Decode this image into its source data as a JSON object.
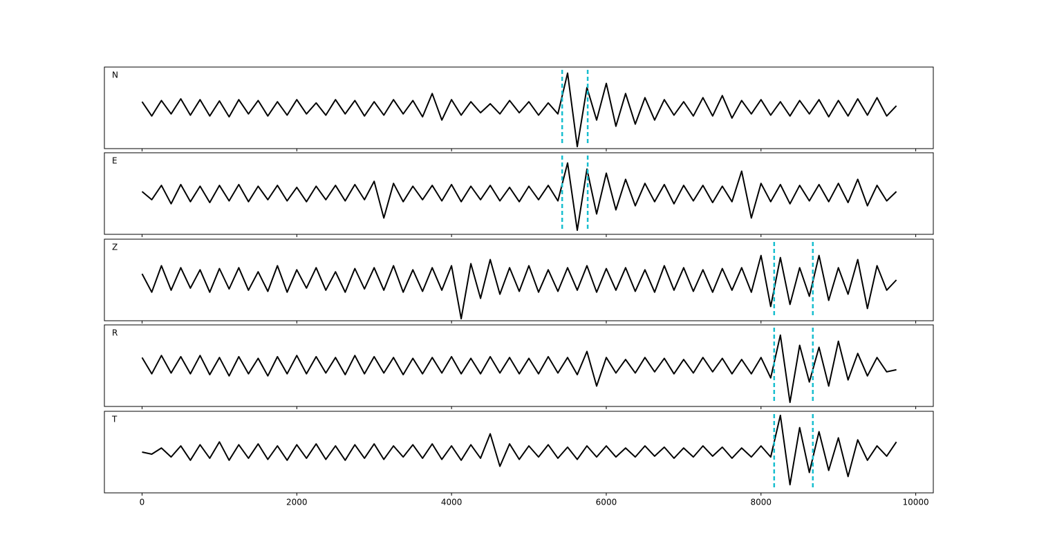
{
  "chart_data": [
    {
      "type": "line",
      "label": "N",
      "color": "#000000",
      "xlim": [
        -487,
        10227
      ],
      "ylim": [
        -1,
        1
      ],
      "xticks": [
        0,
        2000,
        4000,
        6000,
        8000,
        10000
      ],
      "vlines": [
        5430,
        5760
      ],
      "vline_color": "#17becf",
      "x": [
        0,
        125,
        250,
        375,
        500,
        625,
        750,
        875,
        1000,
        1125,
        1250,
        1375,
        1500,
        1625,
        1750,
        1875,
        2000,
        2125,
        2250,
        2375,
        2500,
        2625,
        2750,
        2875,
        3000,
        3125,
        3250,
        3375,
        3500,
        3625,
        3750,
        3875,
        4000,
        4125,
        4250,
        4375,
        4500,
        4625,
        4750,
        4875,
        5000,
        5125,
        5250,
        5375,
        5500,
        5625,
        5750,
        5875,
        6000,
        6125,
        6250,
        6375,
        6500,
        6625,
        6750,
        6875,
        7000,
        7125,
        7250,
        7375,
        7500,
        7625,
        7750,
        7875,
        8000,
        8125,
        8250,
        8375,
        8500,
        8625,
        8750,
        8875,
        9000,
        9125,
        9250,
        9375,
        9500,
        9625,
        9750
      ],
      "values": [
        0.15,
        -0.2,
        0.18,
        -0.15,
        0.22,
        -0.18,
        0.2,
        -0.2,
        0.17,
        -0.22,
        0.2,
        -0.15,
        0.18,
        -0.2,
        0.15,
        -0.18,
        0.2,
        -0.15,
        0.12,
        -0.18,
        0.2,
        -0.15,
        0.18,
        -0.2,
        0.15,
        -0.18,
        0.2,
        -0.15,
        0.18,
        -0.22,
        0.35,
        -0.3,
        0.2,
        -0.18,
        0.15,
        -0.12,
        0.1,
        -0.15,
        0.18,
        -0.12,
        0.15,
        -0.18,
        0.12,
        -0.15,
        0.85,
        -0.95,
        0.5,
        -0.3,
        0.6,
        -0.45,
        0.35,
        -0.4,
        0.25,
        -0.3,
        0.2,
        -0.18,
        0.15,
        -0.2,
        0.25,
        -0.2,
        0.3,
        -0.25,
        0.18,
        -0.15,
        0.2,
        -0.18,
        0.15,
        -0.2,
        0.18,
        -0.15,
        0.2,
        -0.22,
        0.18,
        -0.2,
        0.22,
        -0.18,
        0.25,
        -0.2,
        0.05
      ]
    },
    {
      "type": "line",
      "label": "E",
      "color": "#000000",
      "xlim": [
        -487,
        10227
      ],
      "ylim": [
        -1,
        1
      ],
      "xticks": [
        0,
        2000,
        4000,
        6000,
        8000,
        10000
      ],
      "vlines": [
        5430,
        5760
      ],
      "vline_color": "#17becf",
      "x": [
        0,
        125,
        250,
        375,
        500,
        625,
        750,
        875,
        1000,
        1125,
        1250,
        1375,
        1500,
        1625,
        1750,
        1875,
        2000,
        2125,
        2250,
        2375,
        2500,
        2625,
        2750,
        2875,
        3000,
        3125,
        3250,
        3375,
        3500,
        3625,
        3750,
        3875,
        4000,
        4125,
        4250,
        4375,
        4500,
        4625,
        4750,
        4875,
        5000,
        5125,
        5250,
        5375,
        5500,
        5625,
        5750,
        5875,
        6000,
        6125,
        6250,
        6375,
        6500,
        6625,
        6750,
        6875,
        7000,
        7125,
        7250,
        7375,
        7500,
        7625,
        7750,
        7875,
        8000,
        8125,
        8250,
        8375,
        8500,
        8625,
        8750,
        8875,
        9000,
        9125,
        9250,
        9375,
        9500,
        9625,
        9750
      ],
      "values": [
        0.05,
        -0.15,
        0.2,
        -0.25,
        0.22,
        -0.2,
        0.18,
        -0.22,
        0.2,
        -0.18,
        0.22,
        -0.2,
        0.18,
        -0.15,
        0.2,
        -0.18,
        0.15,
        -0.2,
        0.18,
        -0.15,
        0.2,
        -0.18,
        0.22,
        -0.15,
        0.3,
        -0.6,
        0.25,
        -0.2,
        0.18,
        -0.15,
        0.2,
        -0.18,
        0.22,
        -0.2,
        0.18,
        -0.15,
        0.2,
        -0.18,
        0.15,
        -0.2,
        0.18,
        -0.15,
        0.2,
        -0.18,
        0.75,
        -0.9,
        0.6,
        -0.5,
        0.5,
        -0.4,
        0.35,
        -0.3,
        0.25,
        -0.2,
        0.22,
        -0.25,
        0.2,
        -0.18,
        0.2,
        -0.22,
        0.18,
        -0.2,
        0.55,
        -0.6,
        0.25,
        -0.2,
        0.22,
        -0.25,
        0.2,
        -0.18,
        0.22,
        -0.2,
        0.25,
        -0.22,
        0.35,
        -0.3,
        0.2,
        -0.18,
        0.05
      ]
    },
    {
      "type": "line",
      "label": "Z",
      "color": "#000000",
      "xlim": [
        -487,
        10227
      ],
      "ylim": [
        -1,
        1
      ],
      "xticks": [
        0,
        2000,
        4000,
        6000,
        8000,
        10000
      ],
      "vlines": [
        8170,
        8670
      ],
      "vline_color": "#17becf",
      "x": [
        0,
        125,
        250,
        375,
        500,
        625,
        750,
        875,
        1000,
        1125,
        1250,
        1375,
        1500,
        1625,
        1750,
        1875,
        2000,
        2125,
        2250,
        2375,
        2500,
        2625,
        2750,
        2875,
        3000,
        3125,
        3250,
        3375,
        3500,
        3625,
        3750,
        3875,
        4000,
        4125,
        4250,
        4375,
        4500,
        4625,
        4750,
        4875,
        5000,
        5125,
        5250,
        5375,
        5500,
        5625,
        5750,
        5875,
        6000,
        6125,
        6250,
        6375,
        6500,
        6625,
        6750,
        6875,
        7000,
        7125,
        7250,
        7375,
        7500,
        7625,
        7750,
        7875,
        8000,
        8125,
        8250,
        8375,
        8500,
        8625,
        8750,
        8875,
        9000,
        9125,
        9250,
        9375,
        9500,
        9625,
        9750
      ],
      "values": [
        0.15,
        -0.3,
        0.35,
        -0.25,
        0.3,
        -0.2,
        0.25,
        -0.3,
        0.28,
        -0.22,
        0.3,
        -0.25,
        0.2,
        -0.28,
        0.35,
        -0.3,
        0.25,
        -0.2,
        0.3,
        -0.25,
        0.2,
        -0.3,
        0.28,
        -0.22,
        0.3,
        -0.25,
        0.35,
        -0.3,
        0.25,
        -0.28,
        0.3,
        -0.25,
        0.35,
        -0.95,
        0.4,
        -0.45,
        0.5,
        -0.35,
        0.3,
        -0.28,
        0.35,
        -0.3,
        0.25,
        -0.28,
        0.3,
        -0.25,
        0.35,
        -0.3,
        0.28,
        -0.25,
        0.3,
        -0.28,
        0.25,
        -0.3,
        0.35,
        -0.25,
        0.3,
        -0.28,
        0.25,
        -0.3,
        0.28,
        -0.25,
        0.3,
        -0.3,
        0.6,
        -0.65,
        0.55,
        -0.6,
        0.3,
        -0.4,
        0.6,
        -0.5,
        0.3,
        -0.35,
        0.5,
        -0.7,
        0.35,
        -0.25,
        0.0
      ]
    },
    {
      "type": "line",
      "label": "R",
      "color": "#000000",
      "xlim": [
        -487,
        10227
      ],
      "ylim": [
        -1,
        1
      ],
      "xticks": [
        0,
        2000,
        4000,
        6000,
        8000,
        10000
      ],
      "vlines": [
        8170,
        8670
      ],
      "vline_color": "#17becf",
      "x": [
        0,
        125,
        250,
        375,
        500,
        625,
        750,
        875,
        1000,
        1125,
        1250,
        1375,
        1500,
        1625,
        1750,
        1875,
        2000,
        2125,
        2250,
        2375,
        2500,
        2625,
        2750,
        2875,
        3000,
        3125,
        3250,
        3375,
        3500,
        3625,
        3750,
        3875,
        4000,
        4125,
        4250,
        4375,
        4500,
        4625,
        4750,
        4875,
        5000,
        5125,
        5250,
        5375,
        5500,
        5625,
        5750,
        5875,
        6000,
        6125,
        6250,
        6375,
        6500,
        6625,
        6750,
        6875,
        7000,
        7125,
        7250,
        7375,
        7500,
        7625,
        7750,
        7875,
        8000,
        8125,
        8250,
        8375,
        8500,
        8625,
        8750,
        8875,
        9000,
        9125,
        9250,
        9375,
        9500,
        9625,
        9750
      ],
      "values": [
        0.2,
        -0.2,
        0.25,
        -0.18,
        0.22,
        -0.2,
        0.25,
        -0.22,
        0.2,
        -0.25,
        0.22,
        -0.2,
        0.18,
        -0.25,
        0.22,
        -0.2,
        0.25,
        -0.2,
        0.22,
        -0.18,
        0.2,
        -0.22,
        0.25,
        -0.2,
        0.22,
        -0.18,
        0.2,
        -0.22,
        0.18,
        -0.2,
        0.2,
        -0.18,
        0.22,
        -0.2,
        0.18,
        -0.2,
        0.22,
        -0.18,
        0.2,
        -0.2,
        0.18,
        -0.2,
        0.22,
        -0.18,
        0.2,
        -0.22,
        0.35,
        -0.5,
        0.2,
        -0.18,
        0.15,
        -0.18,
        0.2,
        -0.15,
        0.18,
        -0.2,
        0.15,
        -0.18,
        0.2,
        -0.15,
        0.18,
        -0.2,
        0.15,
        -0.2,
        0.2,
        -0.3,
        0.75,
        -0.9,
        0.5,
        -0.4,
        0.45,
        -0.5,
        0.6,
        -0.35,
        0.3,
        -0.25,
        0.2,
        -0.15,
        -0.1
      ]
    },
    {
      "type": "line",
      "label": "T",
      "color": "#000000",
      "xlim": [
        -487,
        10227
      ],
      "ylim": [
        -1,
        1
      ],
      "xticks": [
        0,
        2000,
        4000,
        6000,
        8000,
        10000
      ],
      "vlines": [
        8170,
        8670
      ],
      "vline_color": "#17becf",
      "x": [
        0,
        125,
        250,
        375,
        500,
        625,
        750,
        875,
        1000,
        1125,
        1250,
        1375,
        1500,
        1625,
        1750,
        1875,
        2000,
        2125,
        2250,
        2375,
        2500,
        2625,
        2750,
        2875,
        3000,
        3125,
        3250,
        3375,
        3500,
        3625,
        3750,
        3875,
        4000,
        4125,
        4250,
        4375,
        4500,
        4625,
        4750,
        4875,
        5000,
        5125,
        5250,
        5375,
        5500,
        5625,
        5750,
        5875,
        6000,
        6125,
        6250,
        6375,
        6500,
        6625,
        6750,
        6875,
        7000,
        7125,
        7250,
        7375,
        7500,
        7625,
        7750,
        7875,
        8000,
        8125,
        8250,
        8375,
        8500,
        8625,
        8750,
        8875,
        9000,
        9125,
        9250,
        9375,
        9500,
        9625,
        9750
      ],
      "values": [
        0.0,
        -0.05,
        0.1,
        -0.12,
        0.15,
        -0.2,
        0.18,
        -0.15,
        0.25,
        -0.2,
        0.18,
        -0.15,
        0.2,
        -0.18,
        0.15,
        -0.2,
        0.18,
        -0.15,
        0.2,
        -0.18,
        0.15,
        -0.2,
        0.18,
        -0.15,
        0.2,
        -0.18,
        0.15,
        -0.12,
        0.18,
        -0.15,
        0.2,
        -0.18,
        0.15,
        -0.2,
        0.18,
        -0.15,
        0.45,
        -0.35,
        0.2,
        -0.18,
        0.15,
        -0.12,
        0.18,
        -0.15,
        0.12,
        -0.18,
        0.15,
        -0.12,
        0.15,
        -0.12,
        0.1,
        -0.12,
        0.15,
        -0.1,
        0.12,
        -0.15,
        0.1,
        -0.12,
        0.15,
        -0.1,
        0.12,
        -0.15,
        0.1,
        -0.12,
        0.15,
        -0.12,
        0.9,
        -0.8,
        0.6,
        -0.5,
        0.5,
        -0.45,
        0.35,
        -0.6,
        0.3,
        -0.2,
        0.15,
        -0.1,
        0.25
      ]
    }
  ]
}
